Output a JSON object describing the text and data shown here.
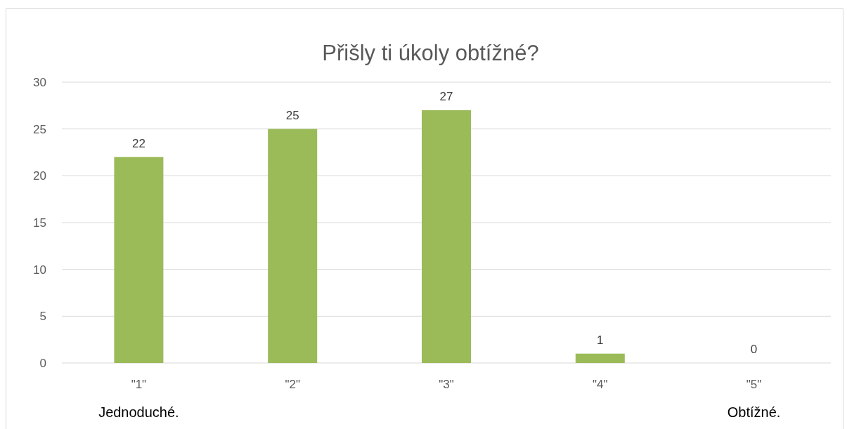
{
  "chart_data": {
    "type": "bar",
    "title": "Přišly ti úkoly obtížné?",
    "categories": [
      "\"1\"",
      "\"2\"",
      "\"3\"",
      "\"4\"",
      "\"5\""
    ],
    "values": [
      22,
      25,
      27,
      1,
      0
    ],
    "color": "#9bbb59",
    "ylim": [
      0,
      30
    ],
    "yticks": [
      0,
      5,
      10,
      15,
      20,
      25,
      30
    ],
    "grid": "y",
    "data_labels": true,
    "annotations": [
      "Jednoduché.",
      "Obtížné."
    ]
  }
}
